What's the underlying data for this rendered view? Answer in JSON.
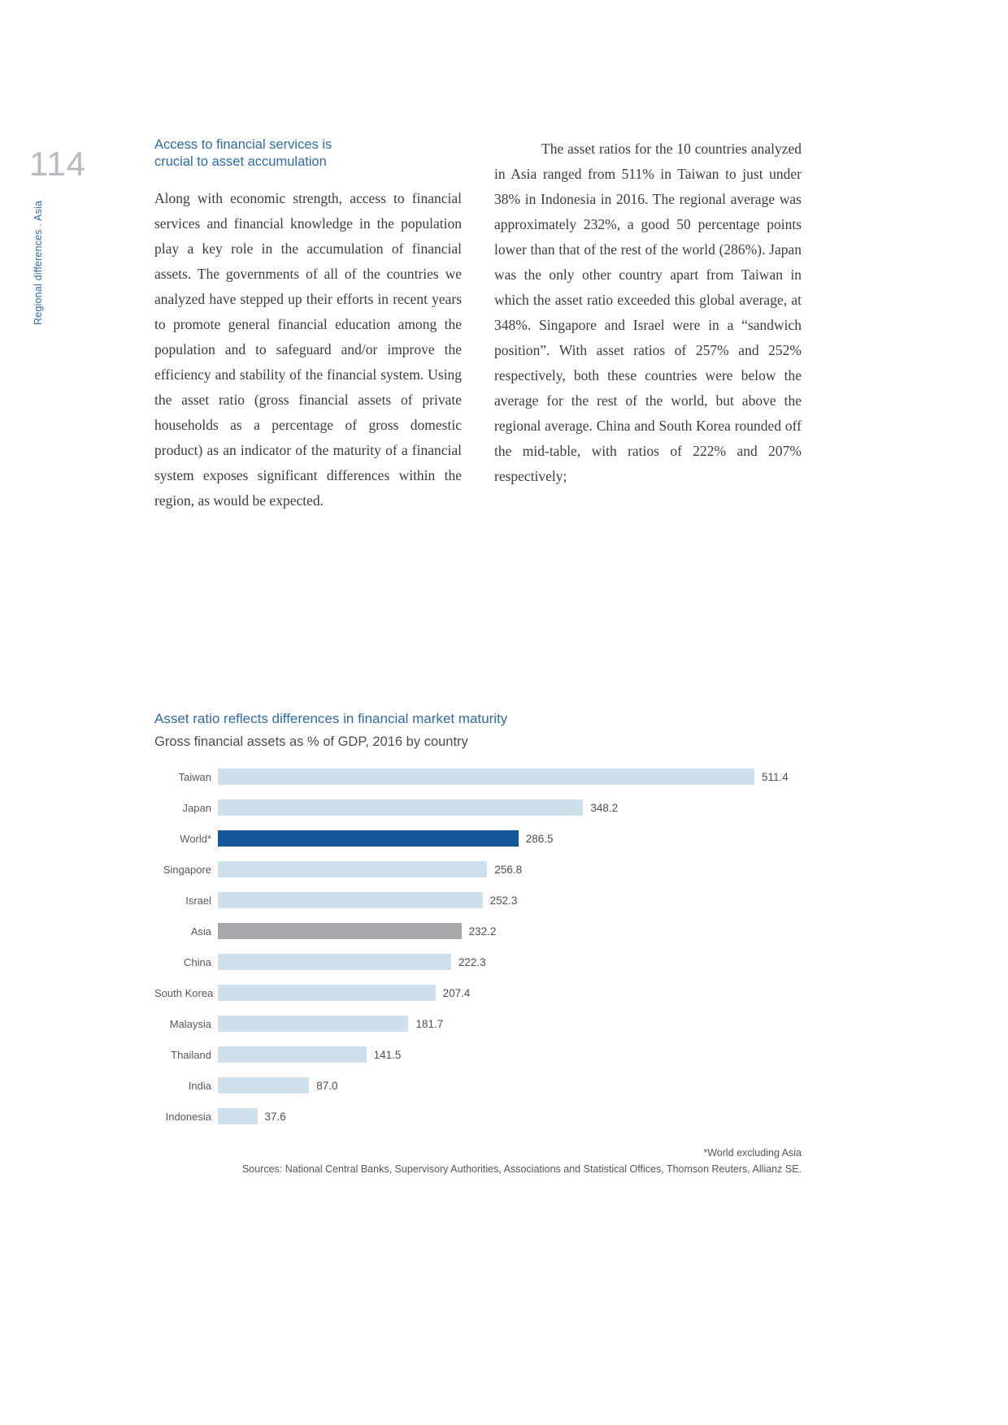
{
  "page": {
    "number": "114",
    "sidebar_label": "Regional differences . Asia"
  },
  "article": {
    "heading_line1": "Access to financial services is",
    "heading_line2": "crucial to asset accumulation",
    "left_paragraph": "Along with economic strength, access to financial services and financial knowledge in the population play a key role in the accumulation of financial assets. The governments of all of the countries we analyzed have stepped up their efforts in recent years to promote general financial education among the population and to safeguard and/or improve the efficiency and stability of the financial system. Using the asset ratio (gross financial assets of private households as a percentage of gross domestic product) as an indicator of the maturity of a financial system exposes significant differences within the region, as would be expected.",
    "right_paragraph": "The asset ratios for the 10 countries analyzed in Asia ranged from 511% in Taiwan to just under 38% in Indonesia in 2016. The regional average was approximately 232%, a good 50 percentage points lower than that of the rest of the world (286%). Japan was the only other country apart from Taiwan in which the asset ratio exceeded this global average, at 348%. Singapore and Israel were in a “sandwich position”. With asset ratios of 257% and 252% respectively, both these countries were below the average for the rest of the world, but above the regional average. China and South Korea rounded off the mid-table, with ratios of 222% and 207% respectively;"
  },
  "chart_data": {
    "type": "bar",
    "orientation": "horizontal",
    "title": "Asset ratio reflects differences in financial market maturity",
    "subtitle": "Gross financial assets as % of GDP, 2016 by country",
    "categories": [
      "Taiwan",
      "Japan",
      "World*",
      "Singapore",
      "Israel",
      "Asia",
      "China",
      "South Korea",
      "Malaysia",
      "Thailand",
      "India",
      "Indonesia"
    ],
    "values": [
      511.4,
      348.2,
      286.5,
      256.8,
      252.3,
      232.2,
      222.3,
      207.4,
      181.7,
      141.5,
      87.0,
      37.6
    ],
    "xlim": [
      0,
      511.4
    ],
    "grid": false,
    "legend": false,
    "highlight_dark": "World*",
    "highlight_gray": "Asia",
    "footnote": "*World excluding Asia",
    "sources": "Sources: National Central Banks, Supervisory Authorities, Associations and Statistical Offices, Thomson Reuters, Allianz SE."
  },
  "colors": {
    "accent_blue": "#2e6ba6",
    "bar_light": "#cfe0ed",
    "bar_dark": "#14589a",
    "bar_gray": "#a6a8ab",
    "page_number_gray": "#b7babe"
  }
}
